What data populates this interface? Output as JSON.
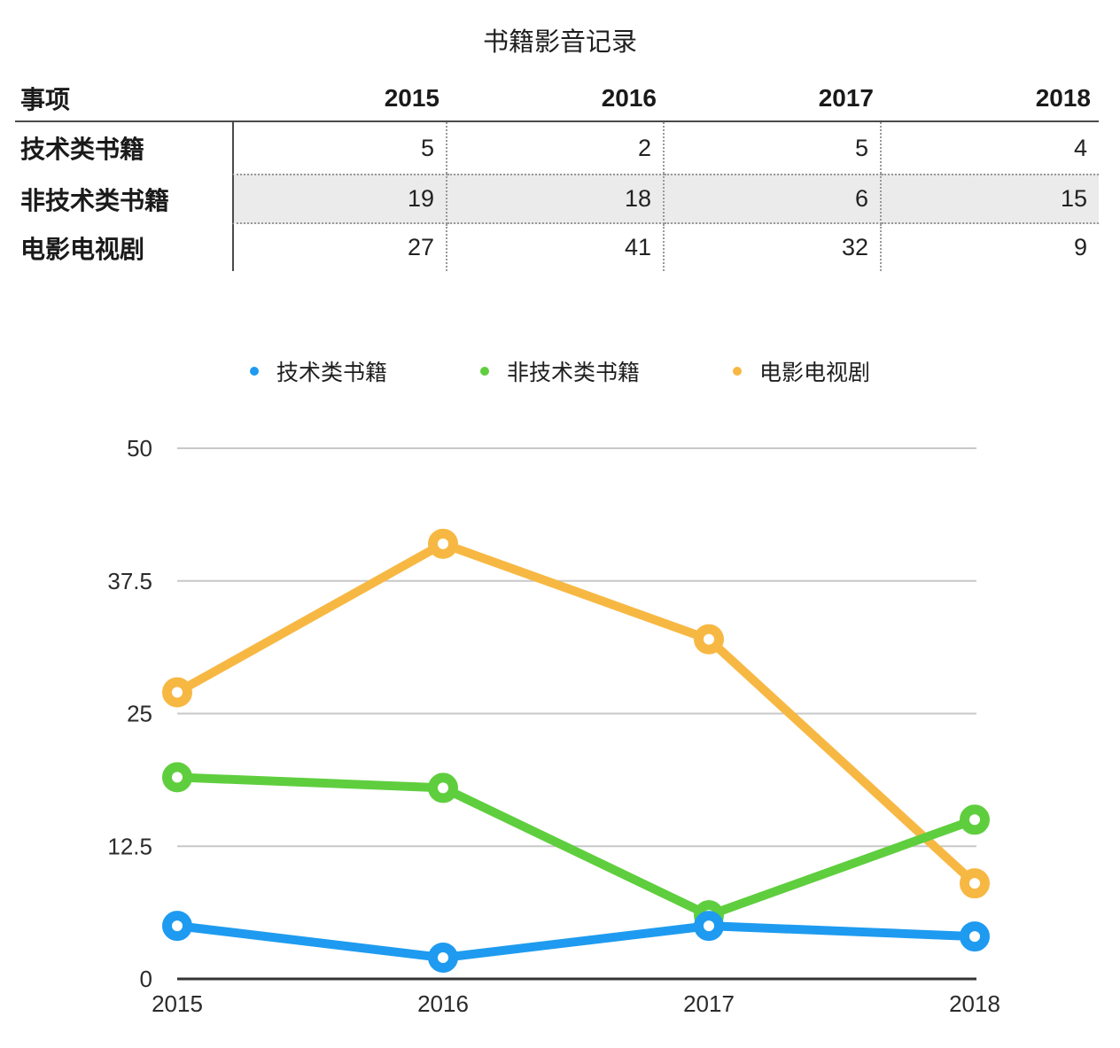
{
  "title": "书籍影音记录",
  "table": {
    "header": [
      "事项",
      "2015",
      "2016",
      "2017",
      "2018"
    ],
    "rows": [
      {
        "label": "技术类书籍",
        "values": [
          "5",
          "2",
          "5",
          "4"
        ]
      },
      {
        "label": "非技术类书籍",
        "values": [
          "19",
          "18",
          "6",
          "15"
        ]
      },
      {
        "label": "电影电视剧",
        "values": [
          "27",
          "41",
          "32",
          "9"
        ]
      }
    ]
  },
  "legend": [
    {
      "label": "技术类书籍",
      "color": "#1E9BF0"
    },
    {
      "label": "非技术类书籍",
      "color": "#5FCE3E"
    },
    {
      "label": "电影电视剧",
      "color": "#F7B843"
    }
  ],
  "chart_data": {
    "type": "line",
    "title": "",
    "x": [
      "2015",
      "2016",
      "2017",
      "2018"
    ],
    "series": [
      {
        "name": "技术类书籍",
        "color": "#1E9BF0",
        "values": [
          5,
          2,
          5,
          4
        ]
      },
      {
        "name": "非技术类书籍",
        "color": "#5FCE3E",
        "values": [
          19,
          18,
          6,
          15
        ]
      },
      {
        "name": "电影电视剧",
        "color": "#F7B843",
        "values": [
          27,
          41,
          32,
          9
        ]
      }
    ],
    "ylim": [
      0,
      50
    ],
    "yticks": [
      0,
      12.5,
      25,
      37.5,
      50
    ],
    "grid": true,
    "legend_position": "top",
    "marker": "open-circle"
  },
  "colors": {
    "grid_line": "#C8C8C8",
    "axis_line": "#333333",
    "row_shade": "#EBEBEB",
    "table_border": "#4A4A4A",
    "table_dotted": "#999999"
  }
}
